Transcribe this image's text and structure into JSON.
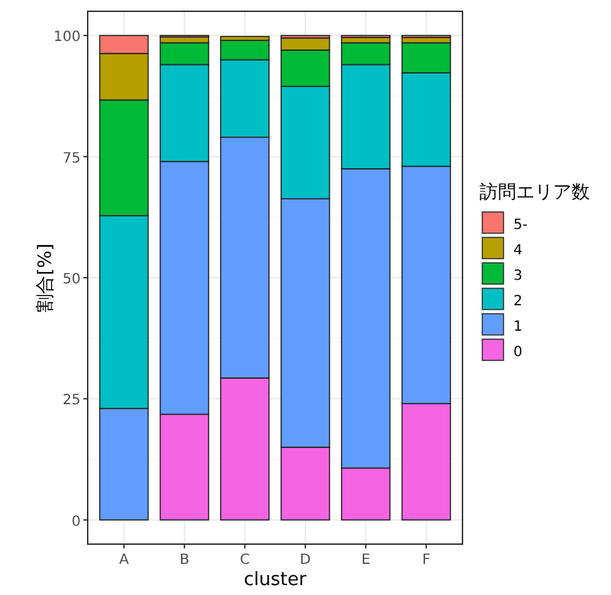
{
  "chart_data": {
    "type": "bar",
    "stacked": true,
    "xlabel": "cluster",
    "ylabel": "割合[%]",
    "legend_title": "訪問エリア数",
    "legend": "right",
    "grid": true,
    "categories": [
      "A",
      "B",
      "C",
      "D",
      "E",
      "F"
    ],
    "series": [
      {
        "name": "0",
        "color": "#f564e3",
        "values": [
          0,
          21.8,
          29.3,
          15,
          10.7,
          24
        ]
      },
      {
        "name": "1",
        "color": "#619cff",
        "values": [
          23,
          52.2,
          49.7,
          51.3,
          61.8,
          49
        ]
      },
      {
        "name": "2",
        "color": "#00bfc4",
        "values": [
          39.8,
          20,
          16,
          23.2,
          21.5,
          19.3
        ]
      },
      {
        "name": "3",
        "color": "#00ba38",
        "values": [
          23.9,
          4.5,
          4,
          7.5,
          4.5,
          6.2
        ]
      },
      {
        "name": "4",
        "color": "#b79f00",
        "values": [
          9.6,
          1.2,
          0.8,
          2.5,
          1.1,
          1.1
        ]
      },
      {
        "name": "5-",
        "color": "#f8766d",
        "values": [
          3.7,
          0.3,
          null,
          0.5,
          0.4,
          0.4
        ]
      }
    ],
    "ylim": [
      -5,
      105
    ],
    "yticks": [
      0,
      25,
      50,
      75,
      100
    ]
  }
}
